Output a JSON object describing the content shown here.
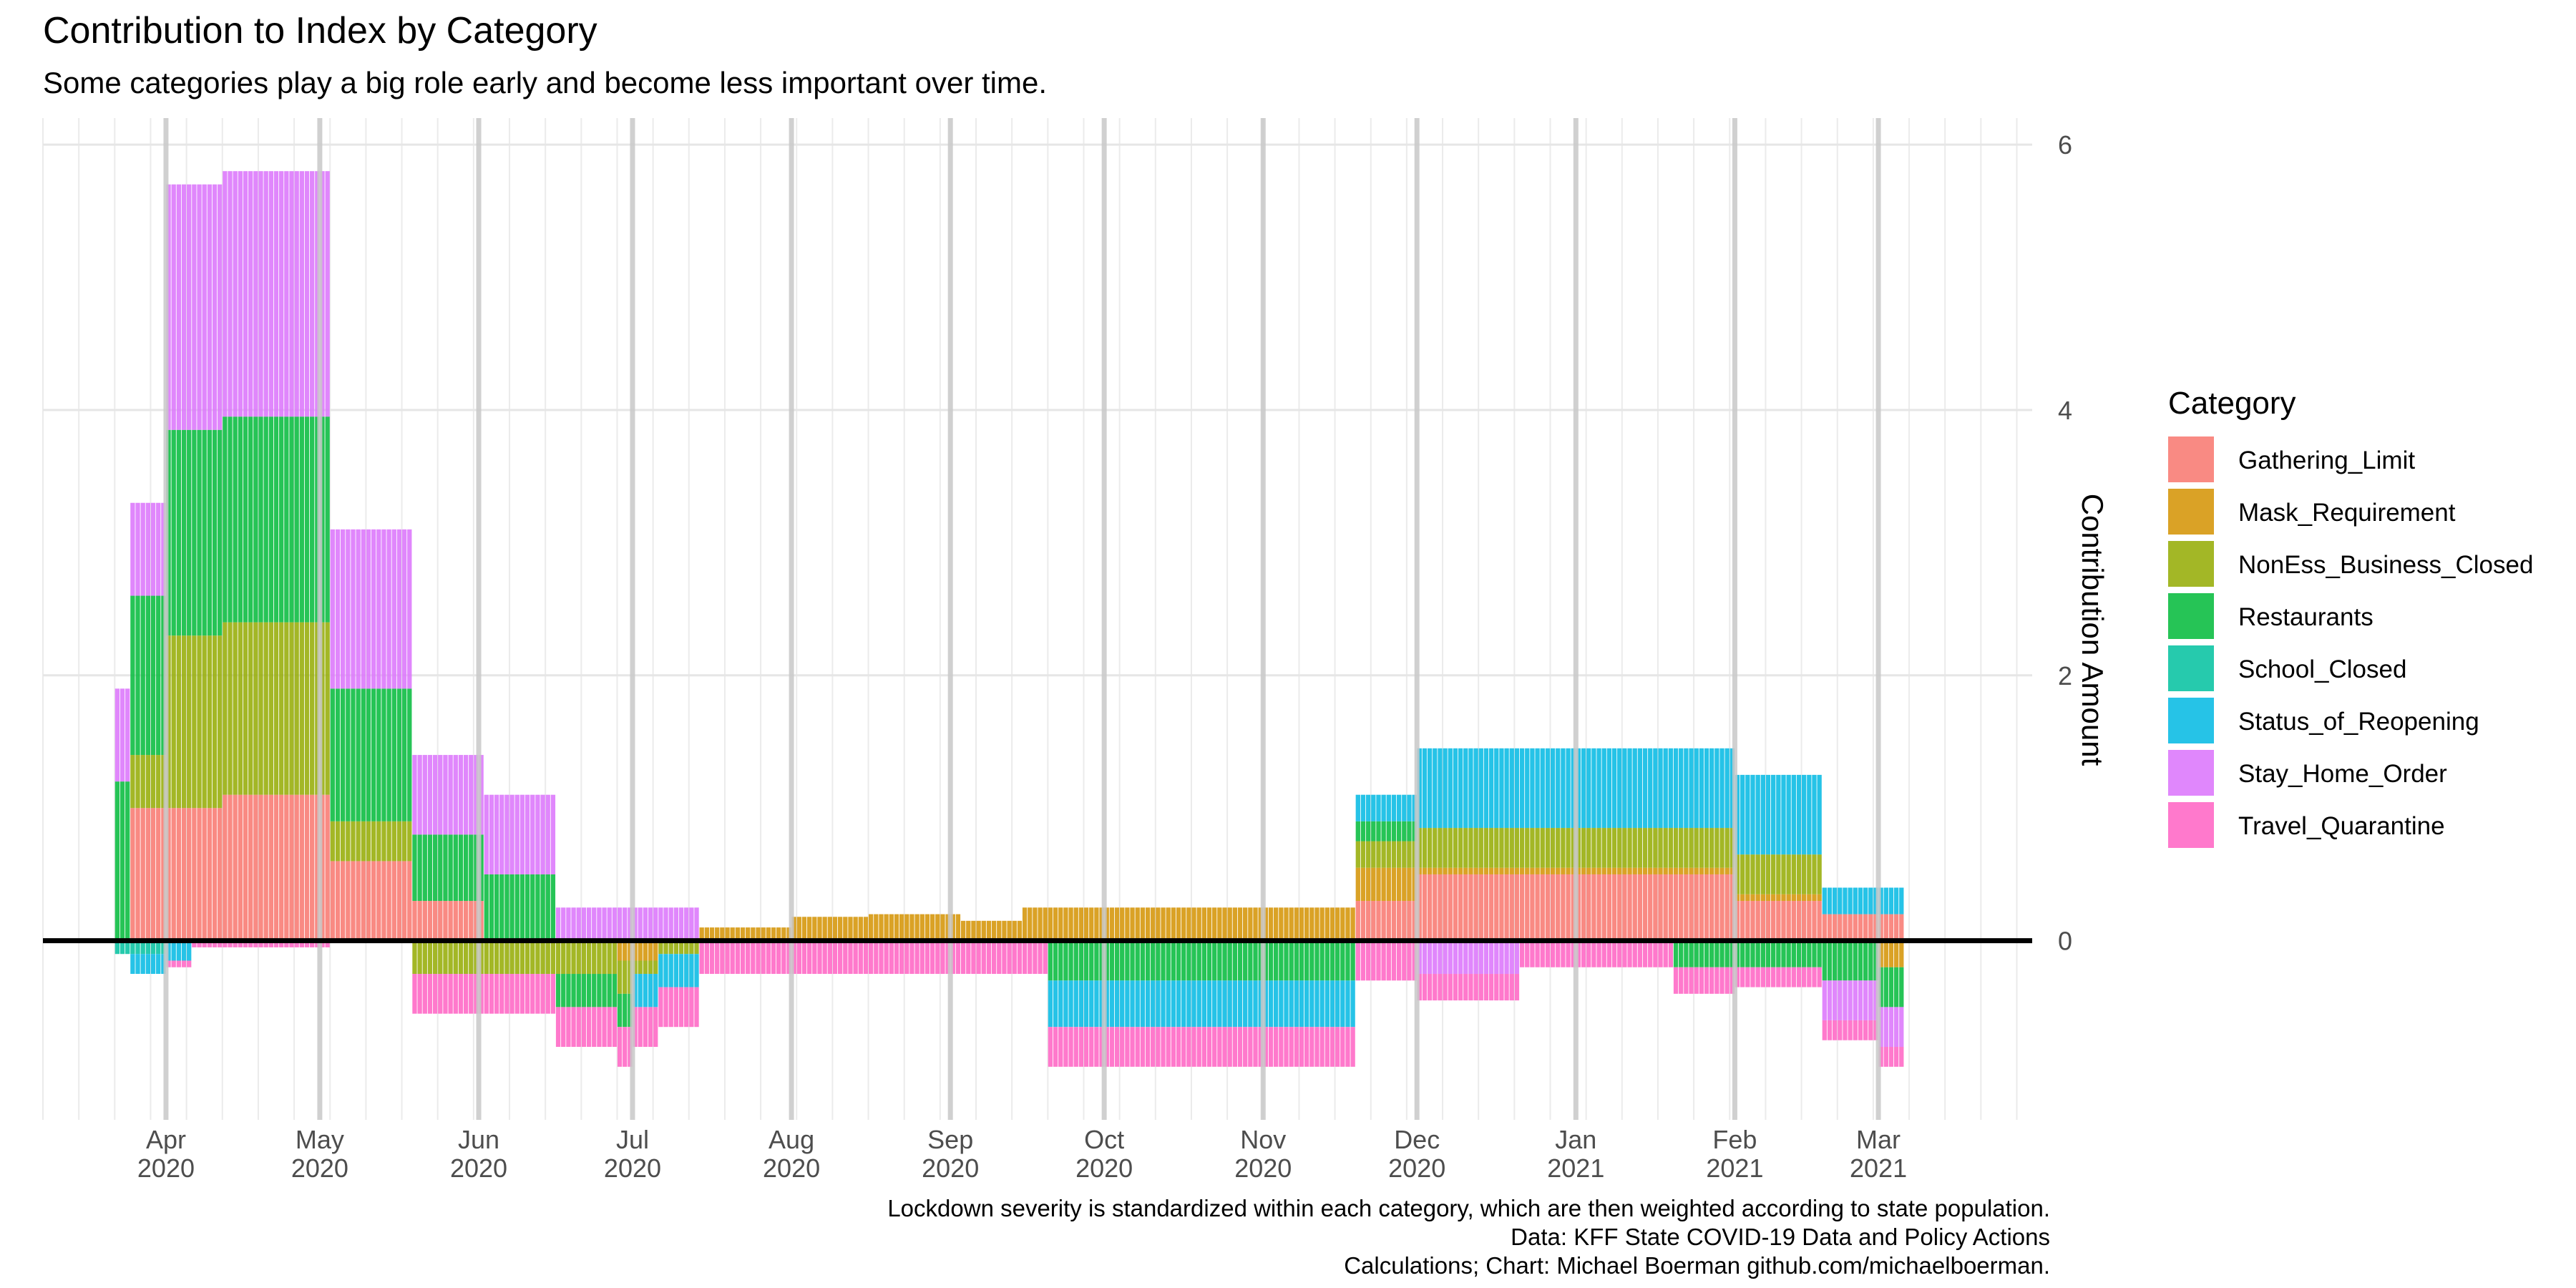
{
  "chart_data": {
    "type": "bar",
    "title": "Contribution to Index by Category",
    "subtitle": "Some categories play a big role early and become less important over time.",
    "ylabel": "Contribution Amount",
    "xlabel": "",
    "ylim": [
      -1.35,
      6.2
    ],
    "y_ticks": [
      0,
      2,
      4,
      6
    ],
    "x_range": [
      "2020-03-08",
      "2021-03-31"
    ],
    "x_ticks": [
      {
        "date": "2020-04-01",
        "month": "Apr",
        "year": "2020"
      },
      {
        "date": "2020-05-01",
        "month": "May",
        "year": "2020"
      },
      {
        "date": "2020-06-01",
        "month": "Jun",
        "year": "2020"
      },
      {
        "date": "2020-07-01",
        "month": "Jul",
        "year": "2020"
      },
      {
        "date": "2020-08-01",
        "month": "Aug",
        "year": "2020"
      },
      {
        "date": "2020-09-01",
        "month": "Sep",
        "year": "2020"
      },
      {
        "date": "2020-10-01",
        "month": "Oct",
        "year": "2020"
      },
      {
        "date": "2020-11-01",
        "month": "Nov",
        "year": "2020"
      },
      {
        "date": "2020-12-01",
        "month": "Dec",
        "year": "2020"
      },
      {
        "date": "2021-01-01",
        "month": "Jan",
        "year": "2021"
      },
      {
        "date": "2021-02-01",
        "month": "Feb",
        "year": "2021"
      },
      {
        "date": "2021-03-01",
        "month": "Mar",
        "year": "2021"
      }
    ],
    "stacked": true,
    "grid": true,
    "legend": {
      "title": "Category",
      "position": "right"
    },
    "series": [
      {
        "name": "Gathering_Limit",
        "color": "#F8766D",
        "segments": [
          {
            "start": "2020-03-25",
            "end": "2020-04-11",
            "value": 1.0
          },
          {
            "start": "2020-04-12",
            "end": "2020-05-02",
            "value": 1.1
          },
          {
            "start": "2020-05-03",
            "end": "2020-05-18",
            "value": 0.6
          },
          {
            "start": "2020-05-19",
            "end": "2020-06-01",
            "value": 0.3
          },
          {
            "start": "2020-11-19",
            "end": "2020-11-30",
            "value": 0.3
          },
          {
            "start": "2020-12-01",
            "end": "2021-01-31",
            "value": 0.5
          },
          {
            "start": "2021-02-01",
            "end": "2021-02-17",
            "value": 0.3
          },
          {
            "start": "2021-02-18",
            "end": "2021-03-05",
            "value": 0.2
          }
        ]
      },
      {
        "name": "Mask_Requirement",
        "color": "#D39200",
        "segments": [
          {
            "start": "2020-03-25",
            "end": "2020-05-02",
            "value": 0.0
          },
          {
            "start": "2020-06-28",
            "end": "2020-07-05",
            "value": -0.15
          },
          {
            "start": "2020-07-14",
            "end": "2020-07-31",
            "value": 0.1
          },
          {
            "start": "2020-08-01",
            "end": "2020-08-15",
            "value": 0.18
          },
          {
            "start": "2020-08-16",
            "end": "2020-09-02",
            "value": 0.2
          },
          {
            "start": "2020-09-03",
            "end": "2020-09-14",
            "value": 0.15
          },
          {
            "start": "2020-09-15",
            "end": "2020-11-18",
            "value": 0.25
          },
          {
            "start": "2020-11-19",
            "end": "2020-11-30",
            "value": 0.25
          },
          {
            "start": "2020-12-01",
            "end": "2021-02-17",
            "value": 0.05
          },
          {
            "start": "2021-03-01",
            "end": "2021-03-05",
            "value": -0.2
          }
        ]
      },
      {
        "name": "NonEss_Business_Closed",
        "color": "#93AA00",
        "segments": [
          {
            "start": "2020-03-25",
            "end": "2020-03-31",
            "value": 0.4
          },
          {
            "start": "2020-04-01",
            "end": "2020-05-02",
            "value": 1.3
          },
          {
            "start": "2020-05-03",
            "end": "2020-05-18",
            "value": 0.3
          },
          {
            "start": "2020-05-19",
            "end": "2020-06-30",
            "value": -0.25
          },
          {
            "start": "2020-07-01",
            "end": "2020-07-13",
            "value": -0.1
          },
          {
            "start": "2020-11-19",
            "end": "2020-11-30",
            "value": 0.2
          },
          {
            "start": "2020-12-01",
            "end": "2021-02-17",
            "value": 0.3
          }
        ]
      },
      {
        "name": "Restaurants",
        "color": "#00BA38",
        "segments": [
          {
            "start": "2020-03-22",
            "end": "2020-03-31",
            "value": 1.2
          },
          {
            "start": "2020-04-01",
            "end": "2020-05-02",
            "value": 1.55
          },
          {
            "start": "2020-05-03",
            "end": "2020-05-18",
            "value": 1.0
          },
          {
            "start": "2020-05-19",
            "end": "2020-06-15",
            "value": 0.5
          },
          {
            "start": "2020-06-16",
            "end": "2020-06-30",
            "value": -0.25
          },
          {
            "start": "2020-09-20",
            "end": "2020-11-18",
            "value": -0.3
          },
          {
            "start": "2020-11-19",
            "end": "2020-11-30",
            "value": 0.15
          },
          {
            "start": "2021-01-20",
            "end": "2021-02-17",
            "value": -0.2
          },
          {
            "start": "2021-02-18",
            "end": "2021-03-05",
            "value": -0.3
          }
        ]
      },
      {
        "name": "School_Closed",
        "color": "#00C19F",
        "segments": [
          {
            "start": "2020-03-22",
            "end": "2020-03-31",
            "value": -0.1
          }
        ]
      },
      {
        "name": "Status_of_Reopening",
        "color": "#00B9E3",
        "segments": [
          {
            "start": "2020-03-25",
            "end": "2020-04-05",
            "value": -0.15
          },
          {
            "start": "2020-07-01",
            "end": "2020-07-13",
            "value": -0.25
          },
          {
            "start": "2020-09-20",
            "end": "2020-11-18",
            "value": -0.35
          },
          {
            "start": "2020-11-19",
            "end": "2020-11-30",
            "value": 0.2
          },
          {
            "start": "2020-12-01",
            "end": "2021-02-17",
            "value": 0.6
          },
          {
            "start": "2021-02-18",
            "end": "2021-03-05",
            "value": 0.2
          }
        ]
      },
      {
        "name": "Stay_Home_Order",
        "color": "#DB72FB",
        "segments": [
          {
            "start": "2020-03-22",
            "end": "2020-03-31",
            "value": 0.7
          },
          {
            "start": "2020-04-01",
            "end": "2020-05-02",
            "value": 1.85
          },
          {
            "start": "2020-05-03",
            "end": "2020-05-18",
            "value": 1.2
          },
          {
            "start": "2020-05-19",
            "end": "2020-06-15",
            "value": 0.6
          },
          {
            "start": "2020-06-16",
            "end": "2020-07-13",
            "value": 0.25
          },
          {
            "start": "2020-12-01",
            "end": "2020-12-20",
            "value": -0.25
          },
          {
            "start": "2021-02-18",
            "end": "2021-03-05",
            "value": -0.3
          }
        ]
      },
      {
        "name": "Travel_Quarantine",
        "color": "#FF61C3",
        "segments": [
          {
            "start": "2020-04-01",
            "end": "2020-05-02",
            "value": -0.05
          },
          {
            "start": "2020-05-19",
            "end": "2020-07-13",
            "value": -0.3
          },
          {
            "start": "2020-07-14",
            "end": "2020-09-19",
            "value": -0.25
          },
          {
            "start": "2020-09-20",
            "end": "2020-11-30",
            "value": -0.3
          },
          {
            "start": "2020-12-01",
            "end": "2021-01-31",
            "value": -0.2
          },
          {
            "start": "2021-02-01",
            "end": "2021-03-05",
            "value": -0.15
          }
        ]
      }
    ],
    "baseline": 0
  },
  "caption": {
    "line1": "Lockdown severity is standardized within each category, which are then weighted according to state population.",
    "line2": "Data: KFF State COVID-19 Data and Policy Actions",
    "line3": "Calculations; Chart: Michael Boerman github.com/michaelboerman."
  }
}
